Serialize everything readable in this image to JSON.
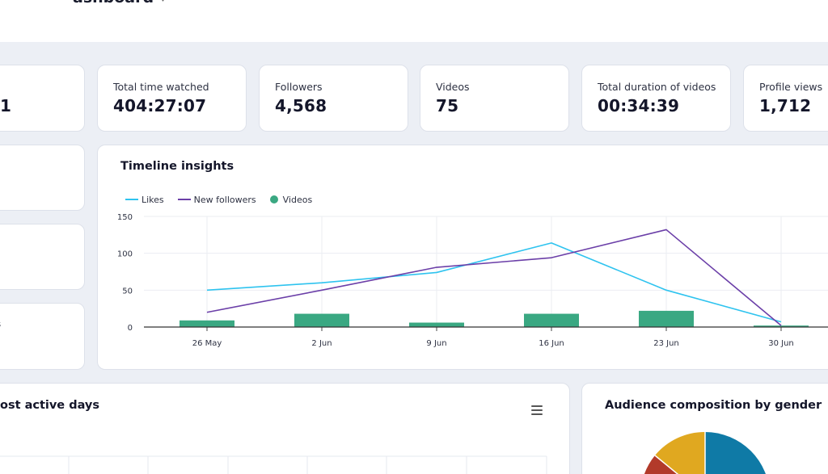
{
  "header": {
    "title": "ashboard",
    "chevron": "˅"
  },
  "kpis": [
    {
      "label": "",
      "value": "1"
    },
    {
      "label": "Total time watched",
      "value": "404:27:07"
    },
    {
      "label": "Followers",
      "value": "4,568"
    },
    {
      "label": "Videos",
      "value": "75"
    },
    {
      "label": "Total duration of videos",
      "value": "00:34:39"
    },
    {
      "label": "Profile views",
      "value": "1,712"
    }
  ],
  "side_cards": [
    {
      "text": ""
    },
    {
      "text": ""
    },
    {
      "text": "s"
    }
  ],
  "timeline": {
    "title": "Timeline insights",
    "chart_data": {
      "type": "line",
      "categories": [
        "26 May",
        "2 Jun",
        "9 Jun",
        "16 Jun",
        "23 Jun",
        "30 Jun"
      ],
      "y_ticks": [
        0,
        50,
        100,
        150
      ],
      "ylim": [
        0,
        150
      ],
      "grid": true,
      "legend_position": "top-left",
      "series": [
        {
          "name": "Likes",
          "type": "line",
          "color": "#2ec3ef",
          "values": [
            50,
            60,
            74,
            114,
            50,
            7
          ]
        },
        {
          "name": "New followers",
          "type": "line",
          "color": "#6b3fa8",
          "values": [
            20,
            50,
            81,
            94,
            132,
            2
          ]
        },
        {
          "name": "Videos",
          "type": "bar",
          "color": "#3aa882",
          "values": [
            9,
            18,
            6,
            18,
            22,
            2
          ]
        }
      ]
    }
  },
  "active_days": {
    "title": "ost active days",
    "menu_icon": "hamburger-menu-icon"
  },
  "gender": {
    "title": "Audience composition by gender",
    "slice_colors": [
      "#0f7aa6",
      "#b23a2a",
      "#e0a820"
    ]
  }
}
